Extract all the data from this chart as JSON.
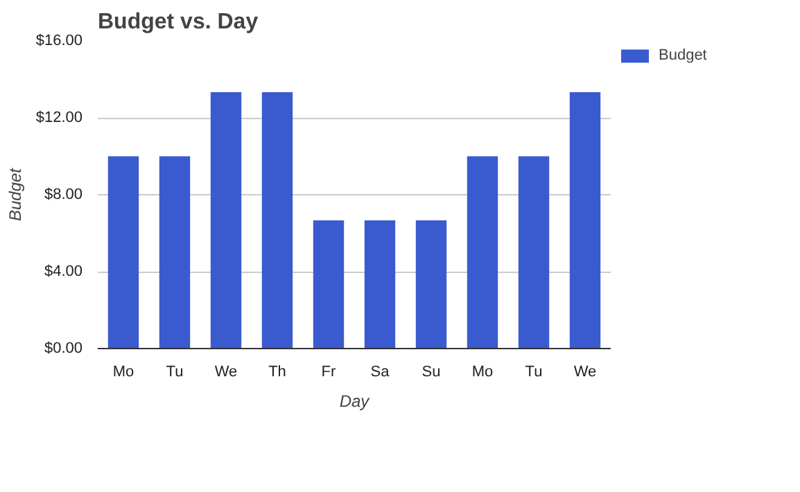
{
  "chart_data": {
    "type": "bar",
    "title": "Budget vs. Day",
    "xlabel": "Day",
    "ylabel": "Budget",
    "categories": [
      "Mo",
      "Tu",
      "We",
      "Th",
      "Fr",
      "Sa",
      "Su",
      "Mo",
      "Tu",
      "We"
    ],
    "series": [
      {
        "name": "Budget",
        "color": "#3a5bcf",
        "values": [
          10,
          10,
          13.33,
          13.33,
          6.67,
          6.67,
          6.67,
          10,
          10,
          13.33
        ]
      }
    ],
    "ylim": [
      0,
      16
    ],
    "yticks": [
      {
        "value": 0,
        "label": "$0.00"
      },
      {
        "value": 4,
        "label": "$4.00"
      },
      {
        "value": 8,
        "label": "$8.00"
      },
      {
        "value": 12,
        "label": "$12.00"
      },
      {
        "value": 16,
        "label": "$16.00"
      }
    ],
    "grid": "y",
    "legend": "top right"
  }
}
